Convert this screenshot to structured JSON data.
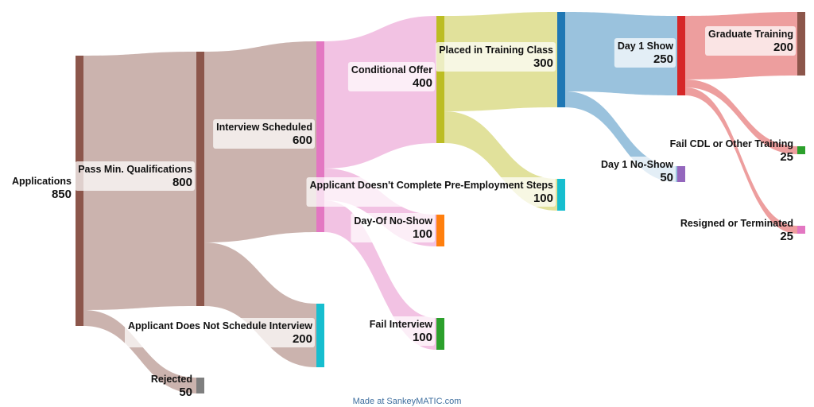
{
  "nodes": [
    {
      "id": "applications",
      "label": "Applications",
      "value": "850",
      "color": "#8c564b"
    },
    {
      "id": "pass",
      "label": "Pass Min. Qualifications",
      "value": "800",
      "color": "#8c564b"
    },
    {
      "id": "rejected",
      "label": "Rejected",
      "value": "50",
      "color": "#7f7f7f"
    },
    {
      "id": "interview_sched",
      "label": "Interview Scheduled",
      "value": "600",
      "color": "#e377c2"
    },
    {
      "id": "no_schedule",
      "label": "Applicant Does Not Schedule Interview",
      "value": "200",
      "color": "#17becf"
    },
    {
      "id": "cond_offer",
      "label": "Conditional Offer",
      "value": "400",
      "color": "#bcbd22"
    },
    {
      "id": "no_show",
      "label": "Day-Of No-Show",
      "value": "100",
      "color": "#ff7f0e"
    },
    {
      "id": "fail_interview",
      "label": "Fail Interview",
      "value": "100",
      "color": "#2ca02c"
    },
    {
      "id": "placed",
      "label": "Placed in Training Class",
      "value": "300",
      "color": "#1f77b4"
    },
    {
      "id": "no_complete",
      "label": "Applicant Doesn't Complete Pre-Employment Steps",
      "value": "100",
      "color": "#17becf"
    },
    {
      "id": "day1_show",
      "label": "Day 1 Show",
      "value": "250",
      "color": "#d62728"
    },
    {
      "id": "day1_noshow",
      "label": "Day 1 No-Show",
      "value": "50",
      "color": "#9467bd"
    },
    {
      "id": "graduate",
      "label": "Graduate Training",
      "value": "200",
      "color": "#8c564b"
    },
    {
      "id": "fail_cdl",
      "label": "Fail CDL or Other Training",
      "value": "25",
      "color": "#2ca02c"
    },
    {
      "id": "resigned",
      "label": "Resigned or Terminated",
      "value": "25",
      "color": "#e377c2"
    }
  ],
  "flows": [
    {
      "from": "applications",
      "to": "pass",
      "value": 800
    },
    {
      "from": "applications",
      "to": "rejected",
      "value": 50
    },
    {
      "from": "pass",
      "to": "interview_sched",
      "value": 600
    },
    {
      "from": "pass",
      "to": "no_schedule",
      "value": 200
    },
    {
      "from": "interview_sched",
      "to": "cond_offer",
      "value": 400
    },
    {
      "from": "interview_sched",
      "to": "no_show",
      "value": 100
    },
    {
      "from": "interview_sched",
      "to": "fail_interview",
      "value": 100
    },
    {
      "from": "cond_offer",
      "to": "placed",
      "value": 300
    },
    {
      "from": "cond_offer",
      "to": "no_complete",
      "value": 100
    },
    {
      "from": "placed",
      "to": "day1_show",
      "value": 250
    },
    {
      "from": "placed",
      "to": "day1_noshow",
      "value": 50
    },
    {
      "from": "day1_show",
      "to": "graduate",
      "value": 200
    },
    {
      "from": "day1_show",
      "to": "fail_cdl",
      "value": 25
    },
    {
      "from": "day1_show",
      "to": "resigned",
      "value": 25
    }
  ],
  "credit": "Made at SankeyMATIC.com"
}
